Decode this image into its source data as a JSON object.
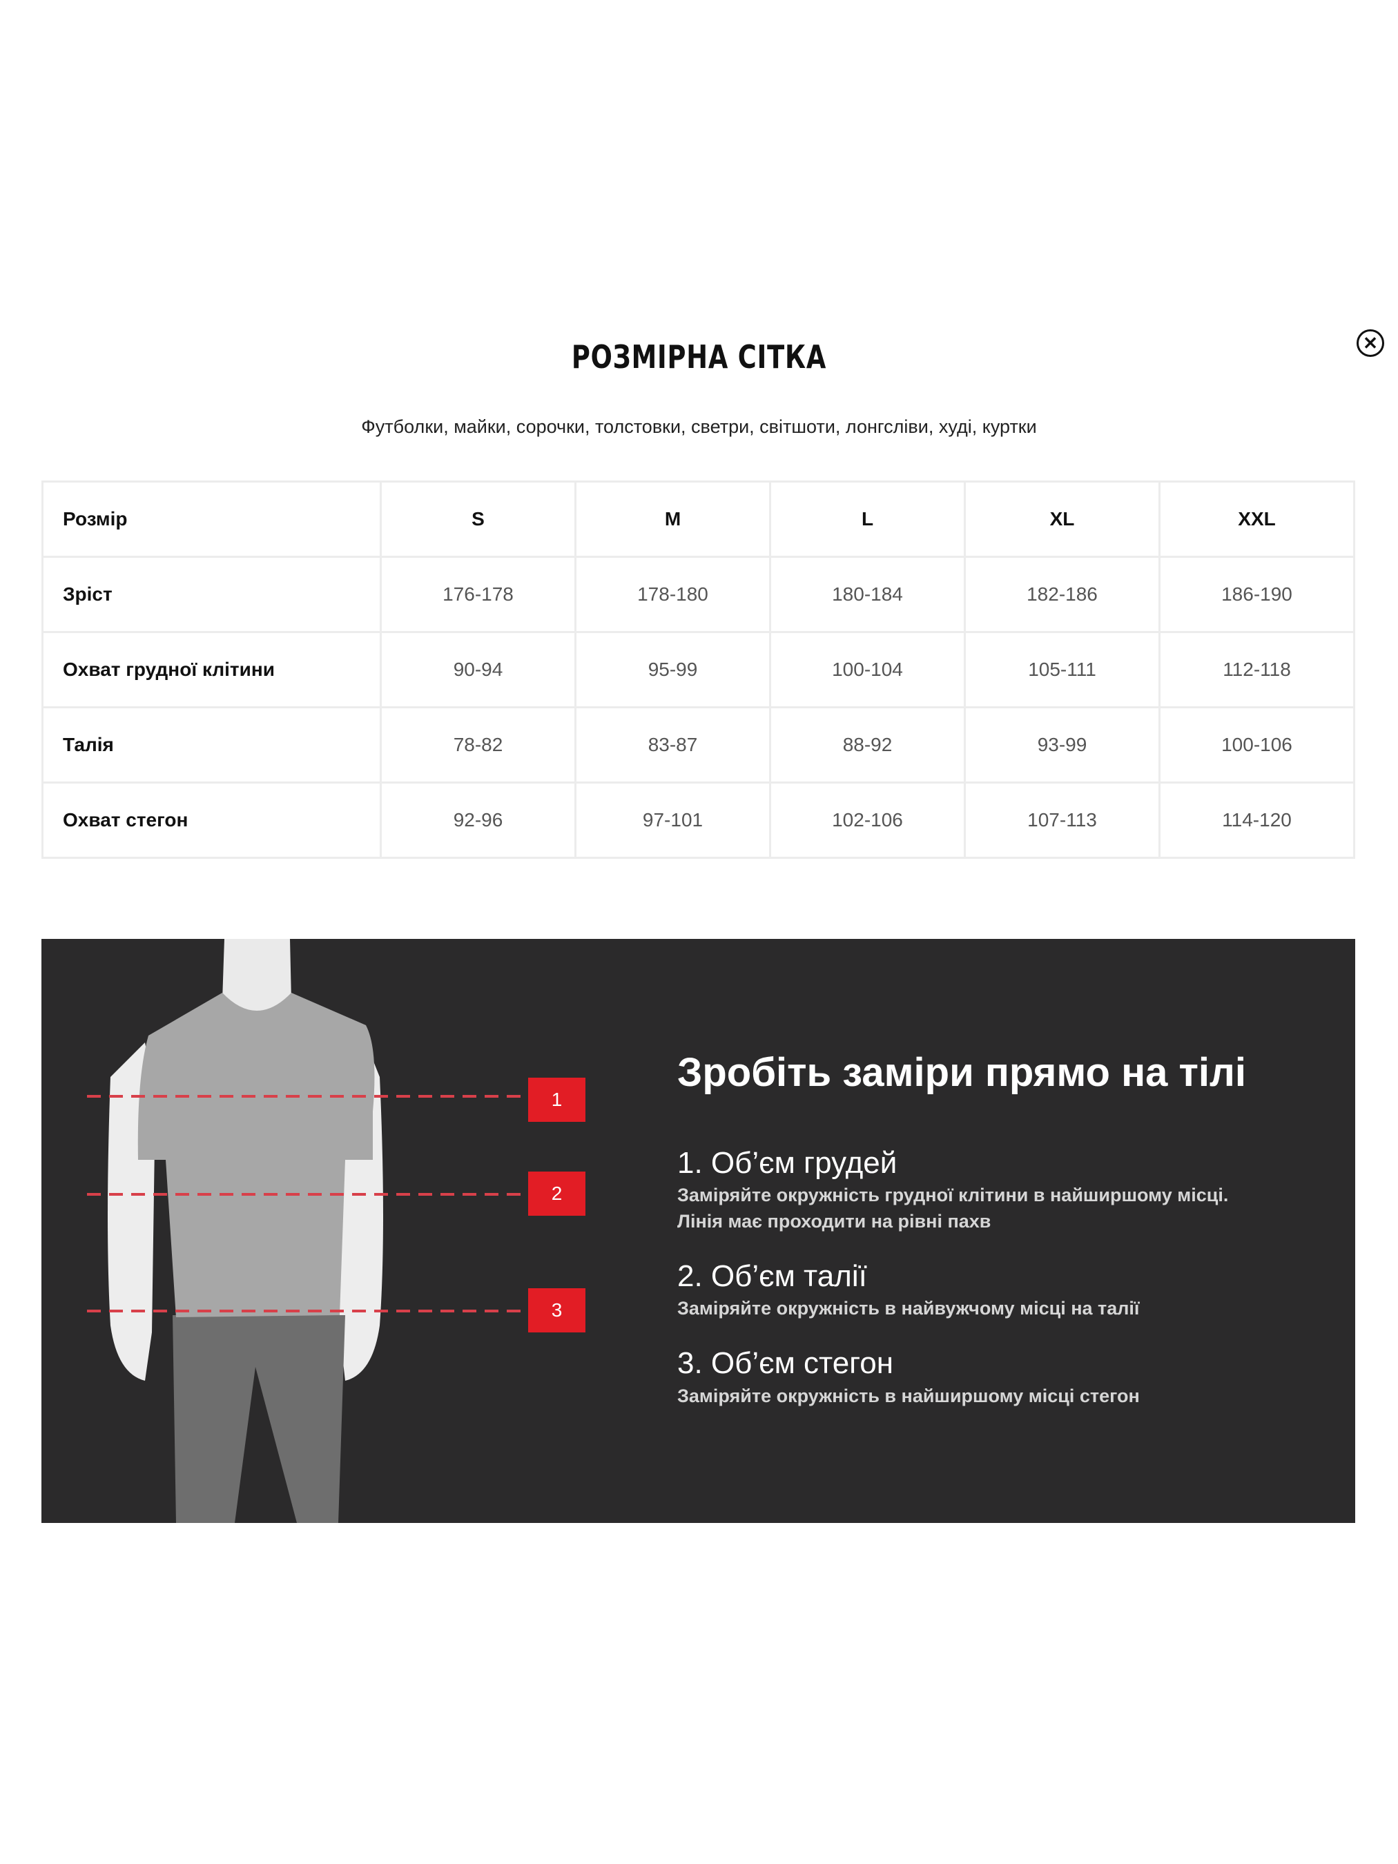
{
  "title": "РОЗМІРНА СІТКА",
  "close_icon": "close-circle-icon",
  "subtitle": "Футболки, майки, сорочки, толстовки, светри, світшоти, лонгсліви, худі, куртки",
  "table": {
    "headers": [
      "Розмір",
      "S",
      "M",
      "L",
      "XL",
      "XXL"
    ],
    "rows": [
      [
        "Зріст",
        "176-178",
        "178-180",
        "180-184",
        "182-186",
        "186-190"
      ],
      [
        "Охват грудної клітини",
        "90-94",
        "95-99",
        "100-104",
        "105-111",
        "112-118"
      ],
      [
        "Талія",
        "78-82",
        "83-87",
        "88-92",
        "93-99",
        "100-106"
      ],
      [
        "Охват стегон",
        "92-96",
        "97-101",
        "102-106",
        "107-113",
        "114-120"
      ]
    ]
  },
  "guide": {
    "heading": "Зробіть заміри прямо на тілі",
    "badges": [
      "1",
      "2",
      "3"
    ],
    "items": [
      {
        "title": "1. Об’єм грудей",
        "desc": [
          "Заміряйте окружність грудної клітини в найширшому місці.",
          "Лінія має проходити на рівні пахв"
        ]
      },
      {
        "title": "2. Об’єм талії",
        "desc": [
          "Заміряйте окружність в найвужчому місці на талії"
        ]
      },
      {
        "title": "3. Об’єм стегон",
        "desc": [
          "Заміряйте окружність в найширшому місці стегон"
        ]
      }
    ],
    "colors": {
      "panel": "#2b2a2b",
      "accent": "#e21d25"
    }
  }
}
